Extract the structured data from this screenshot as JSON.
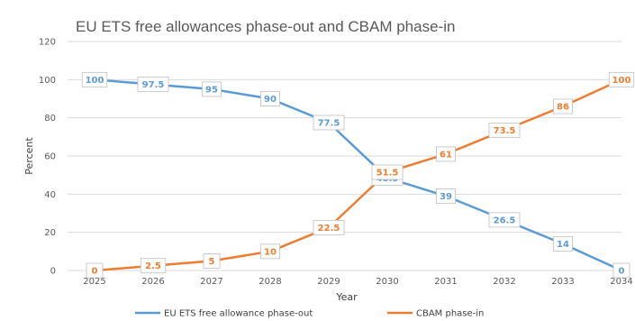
{
  "chart_data": {
    "type": "line",
    "title": "EU ETS free allowances phase-out and CBAM phase-in",
    "xlabel": "Year",
    "ylabel": "Percent",
    "ylim": [
      0,
      120
    ],
    "yticks": [
      0,
      20,
      40,
      60,
      80,
      100,
      120
    ],
    "categories": [
      "2025",
      "2026",
      "2027",
      "2028",
      "2029",
      "2030",
      "2031",
      "2032",
      "2033",
      "2034"
    ],
    "grid": true,
    "legend_position": "bottom",
    "series": [
      {
        "name": "EU ETS free allowance phase-out",
        "color": "#5b9bd5",
        "values": [
          100,
          97.5,
          95,
          90,
          77.5,
          48.5,
          39,
          26.5,
          14,
          0
        ],
        "labels": [
          "100",
          "97.5",
          "95",
          "90",
          "77.5",
          "48.5",
          "39",
          "26.5",
          "14",
          "0"
        ]
      },
      {
        "name": "CBAM phase-in",
        "color": "#ed7d31",
        "values": [
          0,
          2.5,
          5,
          10,
          22.5,
          51.5,
          61,
          73.5,
          86,
          100
        ],
        "labels": [
          "0",
          "2.5",
          "5",
          "10",
          "22.5",
          "51.5",
          "61",
          "73.5",
          "86",
          "100"
        ]
      }
    ]
  }
}
